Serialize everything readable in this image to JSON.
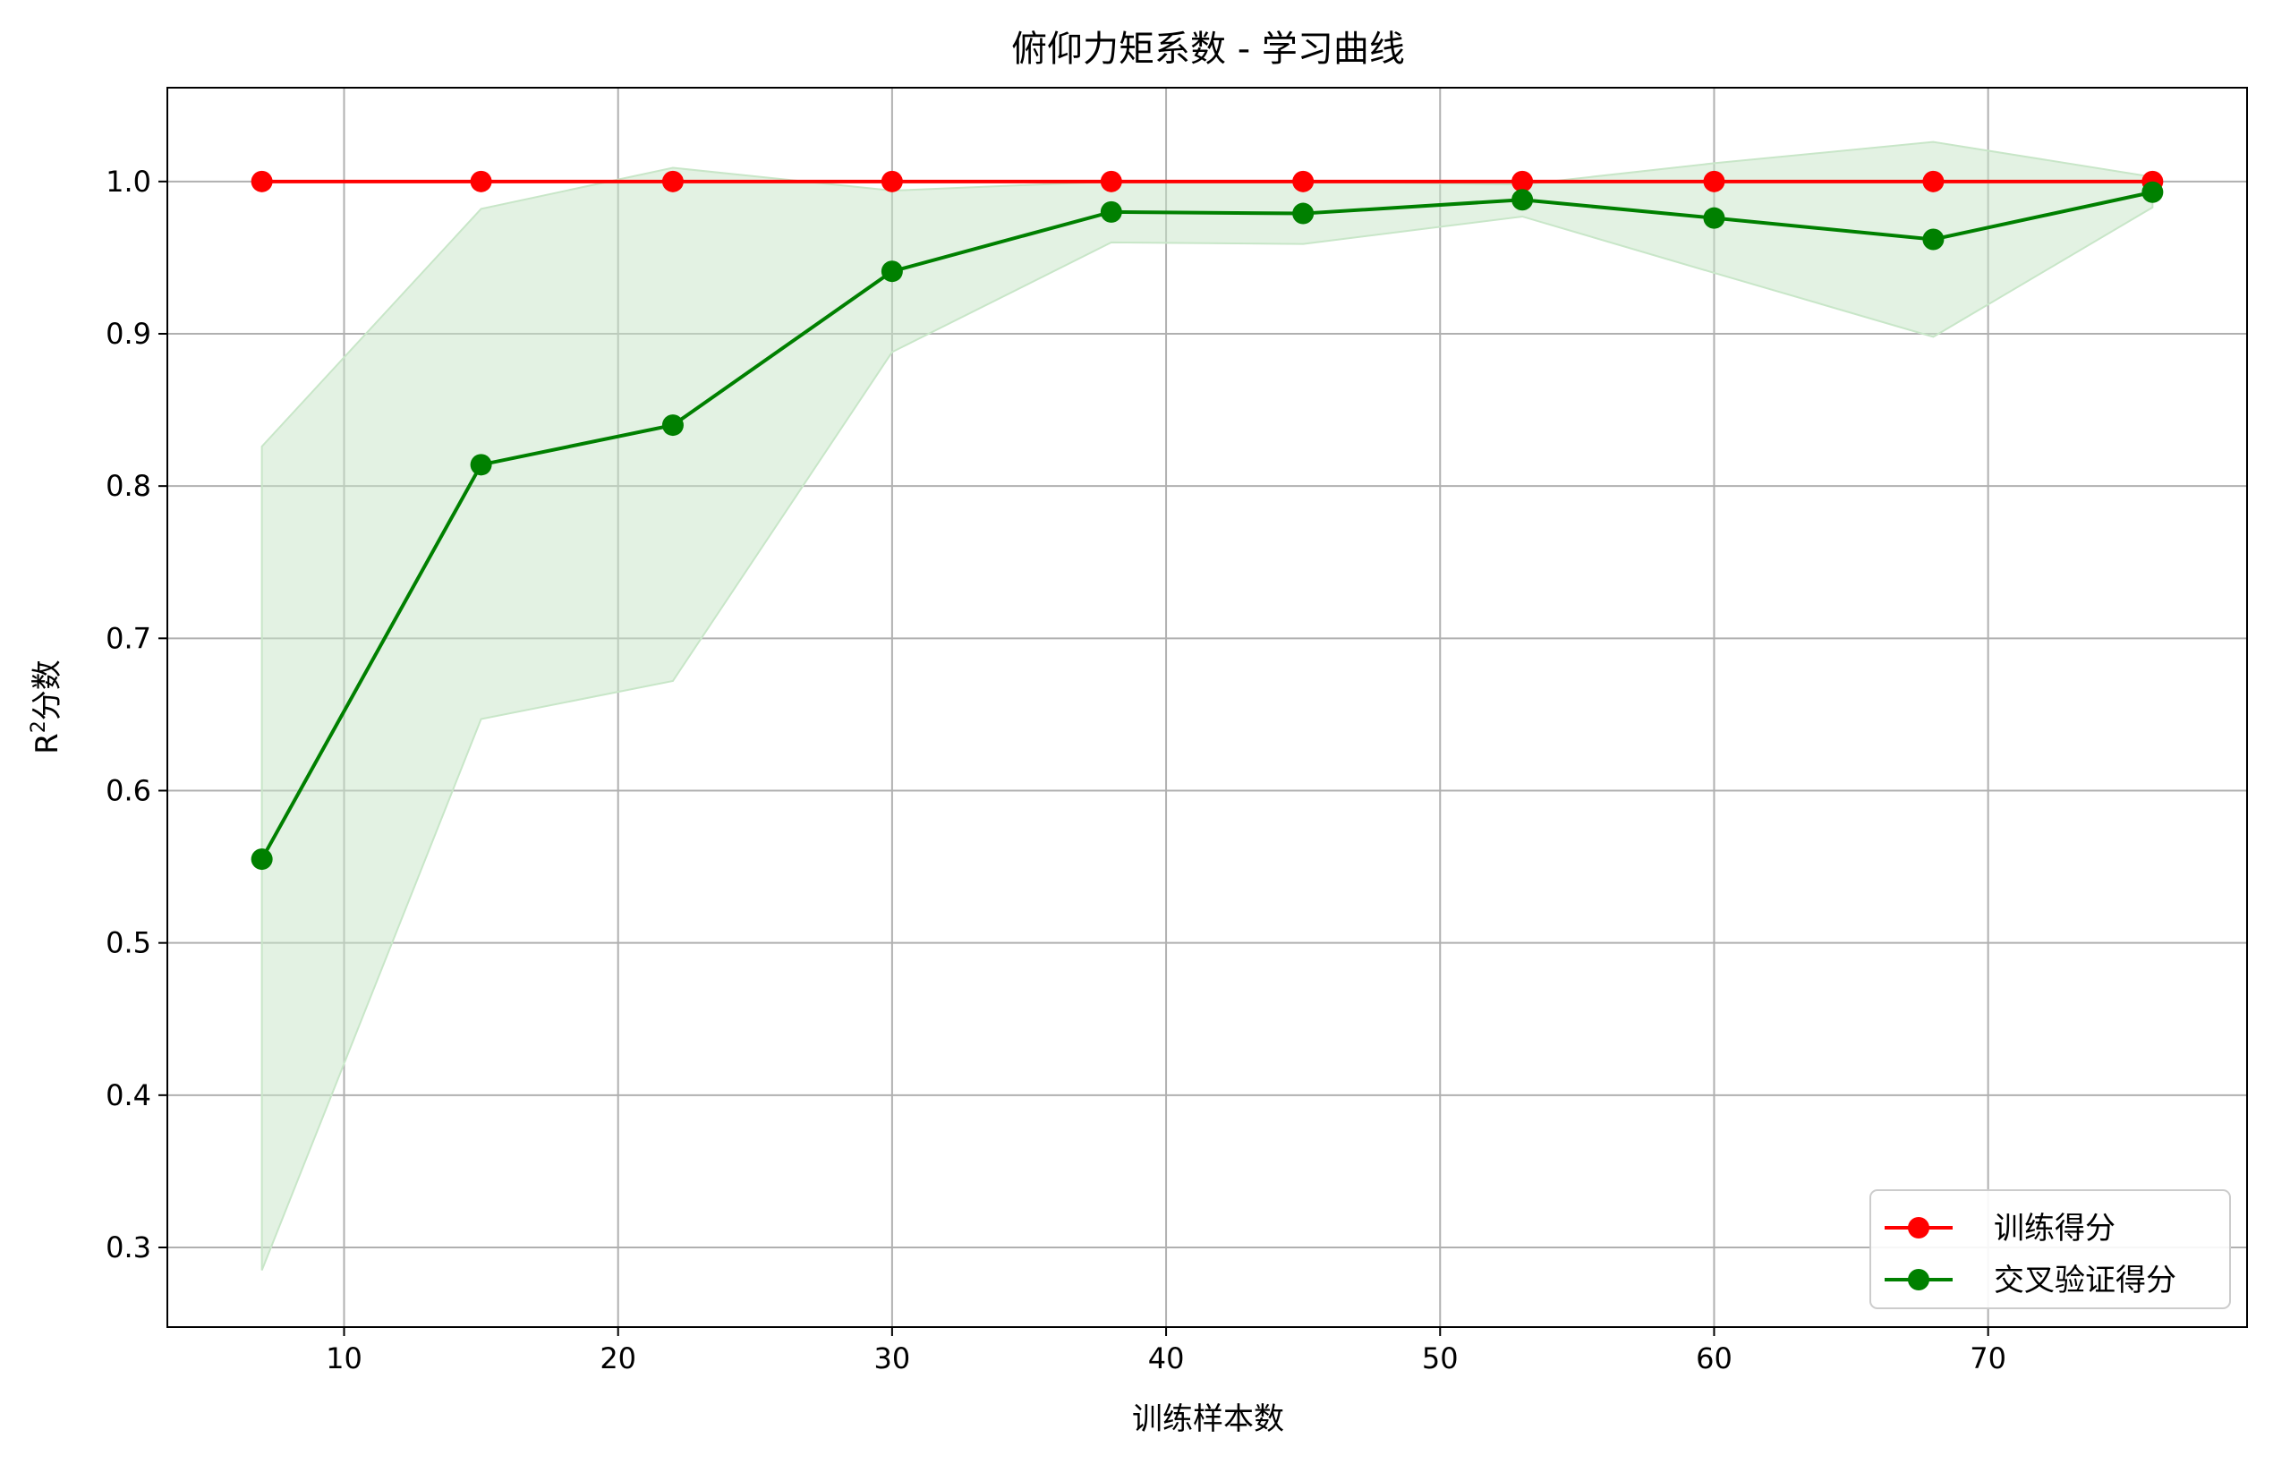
{
  "chart_data": {
    "type": "line",
    "title": "俯仰力矩系数 - 学习曲线",
    "xlabel": "训练样本数",
    "ylabel_base": "R",
    "ylabel_sup": "2",
    "ylabel_rest": "分数",
    "xlim": [
      3.55,
      79.45
    ],
    "ylim": [
      0.2477,
      1.0616
    ],
    "xticks": [
      10,
      20,
      30,
      40,
      50,
      60,
      70
    ],
    "xtick_labels": [
      "10",
      "20",
      "30",
      "40",
      "50",
      "60",
      "70"
    ],
    "yticks": [
      0.3,
      0.4,
      0.5,
      0.6,
      0.7,
      0.8,
      0.9,
      1.0
    ],
    "ytick_labels": [
      "0.3",
      "0.4",
      "0.5",
      "0.6",
      "0.7",
      "0.8",
      "0.9",
      "1.0"
    ],
    "grid": true,
    "legend_position": "lower-right",
    "x": [
      7,
      15,
      22,
      30,
      38,
      45,
      53,
      60,
      68,
      76
    ],
    "series": [
      {
        "name": "训练得分",
        "color": "#ff0000",
        "values": [
          1.0,
          1.0,
          1.0,
          1.0,
          1.0,
          1.0,
          1.0,
          1.0,
          1.0,
          1.0
        ]
      },
      {
        "name": "交叉验证得分",
        "color": "#008000",
        "values": [
          0.555,
          0.814,
          0.84,
          0.941,
          0.98,
          0.979,
          0.988,
          0.976,
          0.962,
          0.993
        ],
        "band_upper": [
          0.826,
          0.982,
          1.009,
          0.994,
          1.0,
          1.0,
          0.998,
          1.012,
          1.026,
          1.003
        ],
        "band_lower": [
          0.285,
          0.647,
          0.672,
          0.888,
          0.96,
          0.959,
          0.977,
          0.94,
          0.898,
          0.983
        ],
        "band_color": "#c8e6c8"
      }
    ]
  }
}
